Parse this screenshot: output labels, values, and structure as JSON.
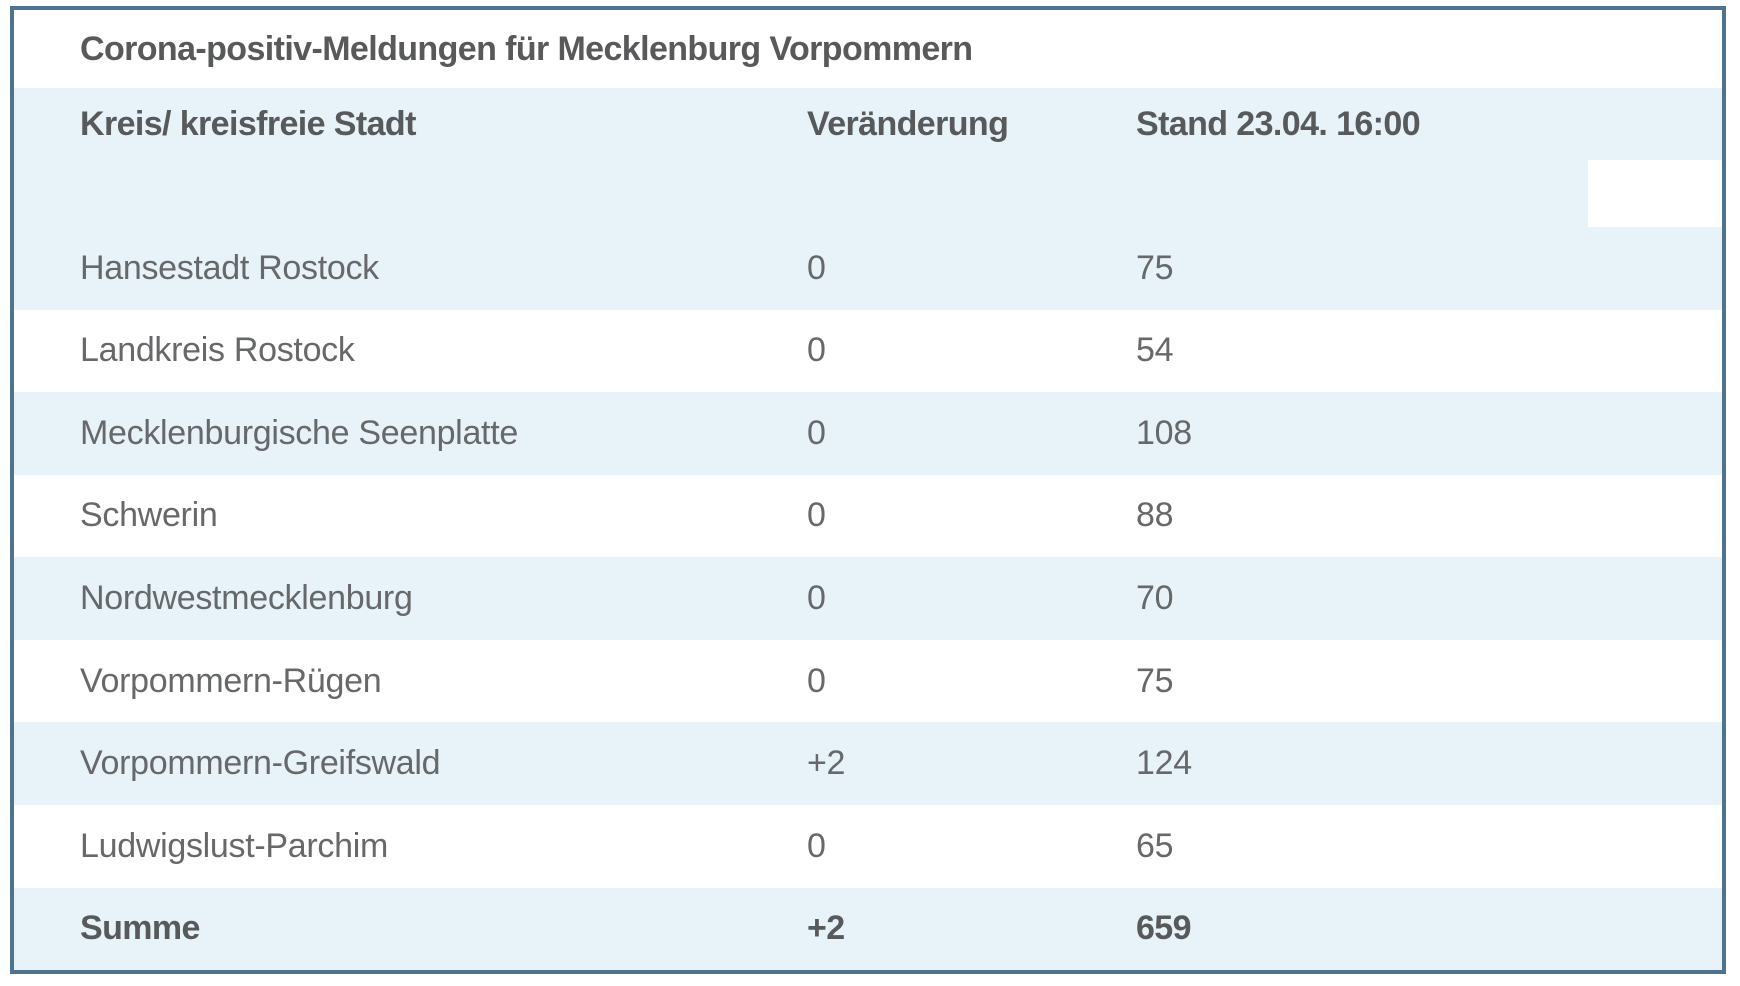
{
  "table": {
    "title": "Corona-positiv-Meldungen für Mecklenburg Vorpommern",
    "columns": {
      "region": "Kreis/ kreisfreie Stadt",
      "change": "Veränderung",
      "stand": "Stand 23.04. 16:00"
    },
    "rows": [
      {
        "name": "Hansestadt Rostock",
        "change": "0",
        "value": "75"
      },
      {
        "name": "Landkreis Rostock",
        "change": "0",
        "value": "54"
      },
      {
        "name": "Mecklenburgische Seenplatte",
        "change": "0",
        "value": "108"
      },
      {
        "name": "Schwerin",
        "change": "0",
        "value": "88"
      },
      {
        "name": "Nordwestmecklenburg",
        "change": "0",
        "value": "70"
      },
      {
        "name": "Vorpommern-Rügen",
        "change": "0",
        "value": "75"
      },
      {
        "name": "Vorpommern-Greifswald",
        "change": "+2",
        "value": "124"
      },
      {
        "name": "Ludwigslust-Parchim",
        "change": "0",
        "value": "65"
      }
    ],
    "total_row": {
      "name": "Summe",
      "change": "+2",
      "value": "659"
    }
  },
  "chart_data": {
    "type": "table",
    "title": "Corona-positiv-Meldungen für Mecklenburg Vorpommern",
    "columns": [
      "Kreis/ kreisfreie Stadt",
      "Veränderung",
      "Stand 23.04. 16:00"
    ],
    "rows": [
      [
        "Hansestadt Rostock",
        "0",
        75
      ],
      [
        "Landkreis Rostock",
        "0",
        54
      ],
      [
        "Mecklenburgische Seenplatte",
        "0",
        108
      ],
      [
        "Schwerin",
        "0",
        88
      ],
      [
        "Nordwestmecklenburg",
        "0",
        70
      ],
      [
        "Vorpommern-Rügen",
        "0",
        75
      ],
      [
        "Vorpommern-Greifswald",
        "+2",
        124
      ],
      [
        "Ludwigslust-Parchim",
        "0",
        65
      ],
      [
        "Summe",
        "+2",
        659
      ]
    ]
  },
  "colors": {
    "accent_blue": "#e7f2f9",
    "border_blue": "#4d7391",
    "heading_text": "#58595b",
    "body_text": "#66686a"
  }
}
